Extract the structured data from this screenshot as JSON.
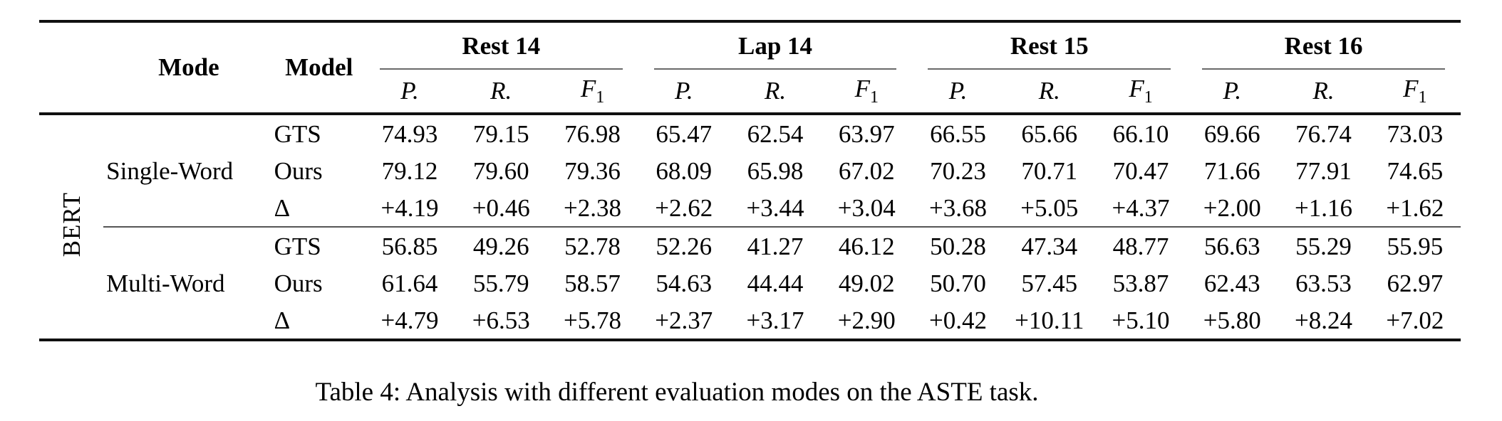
{
  "table": {
    "row_group_label": "BERT",
    "columns": {
      "mode": "Mode",
      "model": "Model"
    },
    "datasets": [
      "Rest 14",
      "Lap 14",
      "Rest 15",
      "Rest 16"
    ],
    "metrics": {
      "p": "P.",
      "r": "R.",
      "f_base": "F",
      "f_sub": "1"
    },
    "groups": [
      {
        "mode": "Single-Word",
        "rows": [
          {
            "model": "GTS",
            "values": [
              "74.93",
              "79.15",
              "76.98",
              "65.47",
              "62.54",
              "63.97",
              "66.55",
              "65.66",
              "66.10",
              "69.66",
              "76.74",
              "73.03"
            ]
          },
          {
            "model": "Ours",
            "values": [
              "79.12",
              "79.60",
              "79.36",
              "68.09",
              "65.98",
              "67.02",
              "70.23",
              "70.71",
              "70.47",
              "71.66",
              "77.91",
              "74.65"
            ]
          },
          {
            "model": "Δ",
            "values": [
              "+4.19",
              "+0.46",
              "+2.38",
              "+2.62",
              "+3.44",
              "+3.04",
              "+3.68",
              "+5.05",
              "+4.37",
              "+2.00",
              "+1.16",
              "+1.62"
            ]
          }
        ]
      },
      {
        "mode": "Multi-Word",
        "rows": [
          {
            "model": "GTS",
            "values": [
              "56.85",
              "49.26",
              "52.78",
              "52.26",
              "41.27",
              "46.12",
              "50.28",
              "47.34",
              "48.77",
              "56.63",
              "55.29",
              "55.95"
            ]
          },
          {
            "model": "Ours",
            "values": [
              "61.64",
              "55.79",
              "58.57",
              "54.63",
              "44.44",
              "49.02",
              "50.70",
              "57.45",
              "53.87",
              "62.43",
              "63.53",
              "62.97"
            ]
          },
          {
            "model": "Δ",
            "values": [
              "+4.79",
              "+6.53",
              "+5.78",
              "+2.37",
              "+3.17",
              "+2.90",
              "+0.42",
              "+10.11",
              "+5.10",
              "+5.80",
              "+8.24",
              "+7.02"
            ]
          }
        ]
      }
    ]
  },
  "caption": "Table 4: Analysis with different evaluation modes on the ASTE task."
}
